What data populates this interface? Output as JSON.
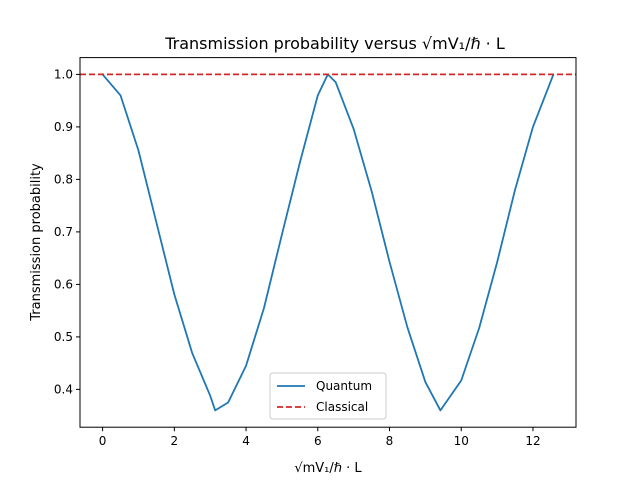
{
  "chart_data": {
    "type": "line",
    "title": "Transmission probability versus √mV₁/ℏ · L",
    "xlabel": "√mV₁/ℏ · L",
    "ylabel": "Transmission probability",
    "xlim": [
      -0.63,
      13.2
    ],
    "ylim": [
      0.328,
      1.032
    ],
    "x_ticks": [
      0,
      2,
      4,
      6,
      8,
      10,
      12
    ],
    "x_tick_labels": [
      "0",
      "2",
      "4",
      "6",
      "8",
      "10",
      "12"
    ],
    "y_ticks": [
      0.4,
      0.5,
      0.6,
      0.7,
      0.8,
      0.9,
      1.0
    ],
    "y_tick_labels": [
      "0.4",
      "0.5",
      "0.6",
      "0.7",
      "0.8",
      "0.9",
      "1.0"
    ],
    "grid": false,
    "legend_position": "lower-center",
    "series": [
      {
        "name": "Quantum",
        "color": "#1f77b4",
        "style": "solid",
        "x": [
          0.0,
          0.5,
          1.0,
          1.5,
          2.0,
          2.5,
          3.0,
          3.14,
          3.5,
          4.0,
          4.5,
          5.0,
          5.5,
          6.0,
          6.28,
          6.5,
          7.0,
          7.5,
          8.0,
          8.5,
          9.0,
          9.42,
          10.0,
          10.5,
          11.0,
          11.5,
          12.0,
          12.57
        ],
        "y": [
          1.0,
          0.96,
          0.855,
          0.718,
          0.581,
          0.469,
          0.388,
          0.36,
          0.375,
          0.445,
          0.555,
          0.695,
          0.832,
          0.96,
          1.0,
          0.985,
          0.896,
          0.778,
          0.643,
          0.518,
          0.414,
          0.36,
          0.417,
          0.517,
          0.642,
          0.78,
          0.9,
          1.0
        ]
      },
      {
        "name": "Classical",
        "color": "#d62728",
        "style": "dashed",
        "x": [
          -0.63,
          13.2
        ],
        "y": [
          1.0,
          1.0
        ]
      }
    ]
  }
}
